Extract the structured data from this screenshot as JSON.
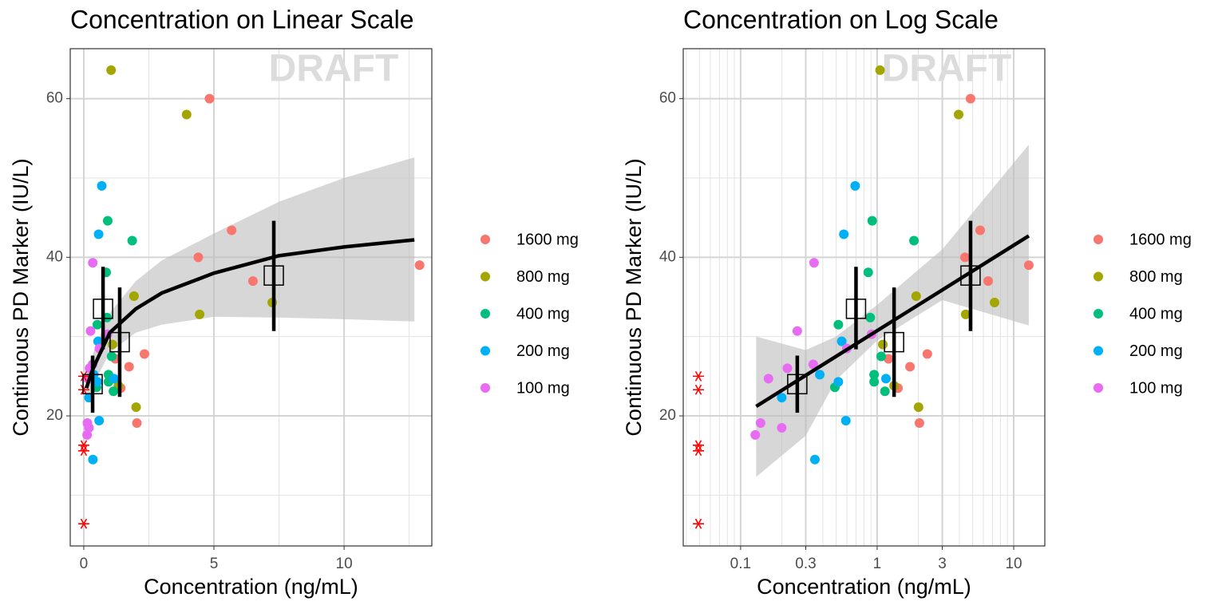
{
  "chart_data": [
    {
      "type": "scatter",
      "title": "Concentration on Linear Scale",
      "x_label": "Concentration (ng/mL)",
      "y_label": "Continuous PD Marker (IU/L)",
      "watermark": "DRAFT",
      "log_x": false,
      "xlim": [
        -0.52,
        13.37
      ],
      "ylim": [
        3.6,
        66.3
      ],
      "xticks": [
        0,
        5,
        10
      ],
      "yticks": [
        20,
        40,
        60
      ],
      "x_minor_grid": [
        2.5,
        7.5,
        12.5
      ],
      "y_minor_grid": [
        10,
        30,
        50
      ],
      "grid": true,
      "series": [
        {
          "name": "1600 mg",
          "color": "#F8766D",
          "x": [
            4.83,
            5.68,
            4.4,
            6.5,
            12.9,
            2.33,
            1.74,
            2.04,
            1.21,
            1.42
          ],
          "values": [
            60,
            43.4,
            40,
            37,
            39,
            27.8,
            26.2,
            19.1,
            27.2,
            23.5
          ]
        },
        {
          "name": "800 mg",
          "color": "#A3A500",
          "x": [
            1.05,
            3.95,
            7.24,
            4.45,
            1.93,
            2.01,
            1.1,
            1.33
          ],
          "values": [
            63.6,
            58,
            34.3,
            32.8,
            35.1,
            21.1,
            29,
            23.8
          ]
        },
        {
          "name": "400 mg",
          "color": "#00BF7D",
          "x": [
            0.92,
            1.86,
            0.86,
            0.52,
            0.89,
            1.07,
            0.95,
            0.95,
            0.49,
            1.14
          ],
          "values": [
            44.6,
            42.1,
            38.1,
            31.5,
            32.4,
            27.5,
            25.2,
            24.3,
            23.6,
            23.1
          ]
        },
        {
          "name": "200 mg",
          "color": "#00B0F6",
          "x": [
            0.69,
            0.57,
            0.55,
            0.38,
            0.52,
            1.16,
            0.2,
            0.59,
            0.35
          ],
          "values": [
            49,
            42.9,
            29.4,
            25.2,
            24.3,
            24.7,
            22.3,
            19.4,
            14.5
          ]
        },
        {
          "name": "100 mg",
          "color": "#E76BF3",
          "x": [
            0.345,
            0.26,
            0.91,
            0.34,
            0.22,
            0.16,
            0.6,
            0.14,
            0.2,
            0.128
          ],
          "values": [
            39.3,
            30.7,
            30.3,
            26.5,
            26,
            24.7,
            28.5,
            19.1,
            18.5,
            17.6
          ]
        }
      ],
      "blq": {
        "color": "#FF0000",
        "x": [
          0,
          0,
          0,
          0,
          0
        ],
        "values": [
          25,
          23.3,
          16.3,
          15.6,
          6.4
        ]
      },
      "fit": {
        "color": "#000000",
        "x": [
          0.1,
          0.3,
          0.5,
          1,
          2,
          3,
          5,
          7.5,
          10,
          12.7
        ],
        "values": [
          23.5,
          25.5,
          27,
          30.5,
          33.5,
          35.5,
          38,
          40.2,
          41.3,
          42.2
        ]
      },
      "ribbon": {
        "color": "#bdbdbd",
        "x": [
          0.1,
          0.5,
          1,
          2,
          3,
          5,
          7.5,
          10,
          12.7
        ],
        "lower": [
          21.5,
          24.8,
          28,
          30.5,
          31.5,
          32.5,
          32.4,
          32.2,
          31.9
        ],
        "upper": [
          25.5,
          29.2,
          33,
          37,
          39.6,
          43,
          47,
          50,
          52.6
        ]
      },
      "summary": {
        "x": [
          0.34,
          0.74,
          1.38,
          7.3
        ],
        "values": [
          24,
          33.5,
          29.3,
          37.7
        ],
        "lower": [
          20.4,
          28.4,
          22.4,
          30.7
        ],
        "upper": [
          27.6,
          38.8,
          36.2,
          44.6
        ]
      }
    },
    {
      "type": "scatter",
      "title": "Concentration on Log Scale",
      "x_label": "Concentration (ng/mL)",
      "y_label": "Continuous PD Marker (IU/L)",
      "watermark": "DRAFT",
      "log_x": true,
      "xlim": [
        0.038,
        16.9
      ],
      "ylim": [
        3.6,
        66.3
      ],
      "xticks": [
        0.1,
        0.3,
        1,
        3,
        10
      ],
      "yticks": [
        20,
        40,
        60
      ],
      "x_minor_grid": [
        0.04,
        0.05,
        0.06,
        0.07,
        0.08,
        0.09,
        0.2,
        0.4,
        0.5,
        0.6,
        0.7,
        0.8,
        0.9,
        2,
        4,
        5,
        6,
        7,
        8,
        9
      ],
      "y_minor_grid": [
        10,
        30,
        50
      ],
      "grid": true,
      "series": [
        {
          "name": "1600 mg",
          "color": "#F8766D",
          "x": [
            4.83,
            5.68,
            4.4,
            6.5,
            12.9,
            2.33,
            1.74,
            2.04,
            1.21,
            1.42
          ],
          "values": [
            60,
            43.4,
            40,
            37,
            39,
            27.8,
            26.2,
            19.1,
            27.2,
            23.5
          ]
        },
        {
          "name": "800 mg",
          "color": "#A3A500",
          "x": [
            1.05,
            3.95,
            7.24,
            4.45,
            1.93,
            2.01,
            1.1,
            1.33
          ],
          "values": [
            63.6,
            58,
            34.3,
            32.8,
            35.1,
            21.1,
            29,
            23.8
          ]
        },
        {
          "name": "400 mg",
          "color": "#00BF7D",
          "x": [
            0.92,
            1.86,
            0.86,
            0.52,
            0.89,
            1.07,
            0.95,
            0.95,
            0.49,
            1.14
          ],
          "values": [
            44.6,
            42.1,
            38.1,
            31.5,
            32.4,
            27.5,
            25.2,
            24.3,
            23.6,
            23.1
          ]
        },
        {
          "name": "200 mg",
          "color": "#00B0F6",
          "x": [
            0.69,
            0.57,
            0.55,
            0.38,
            0.52,
            1.16,
            0.2,
            0.59,
            0.35
          ],
          "values": [
            49,
            42.9,
            29.4,
            25.2,
            24.3,
            24.7,
            22.3,
            19.4,
            14.5
          ]
        },
        {
          "name": "100 mg",
          "color": "#E76BF3",
          "x": [
            0.345,
            0.26,
            0.91,
            0.34,
            0.22,
            0.16,
            0.6,
            0.14,
            0.2,
            0.128
          ],
          "values": [
            39.3,
            30.7,
            30.3,
            26.5,
            26,
            24.7,
            28.5,
            19.1,
            18.5,
            17.6
          ]
        }
      ],
      "blq": {
        "color": "#FF0000",
        "values": [
          25,
          23.3,
          16.3,
          15.6,
          6.4
        ]
      },
      "fit": {
        "color": "#000000",
        "x": [
          0.13,
          12.9
        ],
        "values": [
          21.2,
          42.7
        ]
      },
      "ribbon": {
        "color": "#bdbdbd",
        "x": [
          0.13,
          0.3,
          0.5,
          1,
          3,
          12.9
        ],
        "lower": [
          12.3,
          17.5,
          24.5,
          29.5,
          34.6,
          31.4
        ],
        "upper": [
          30,
          28.3,
          30,
          34,
          41,
          54.2
        ]
      },
      "summary": {
        "x": [
          0.26,
          0.7,
          1.33,
          4.83
        ],
        "values": [
          24,
          33.5,
          29.3,
          37.7
        ],
        "lower": [
          20.4,
          28.4,
          22.4,
          30.7
        ],
        "upper": [
          27.6,
          38.8,
          36.2,
          44.6
        ]
      }
    }
  ]
}
